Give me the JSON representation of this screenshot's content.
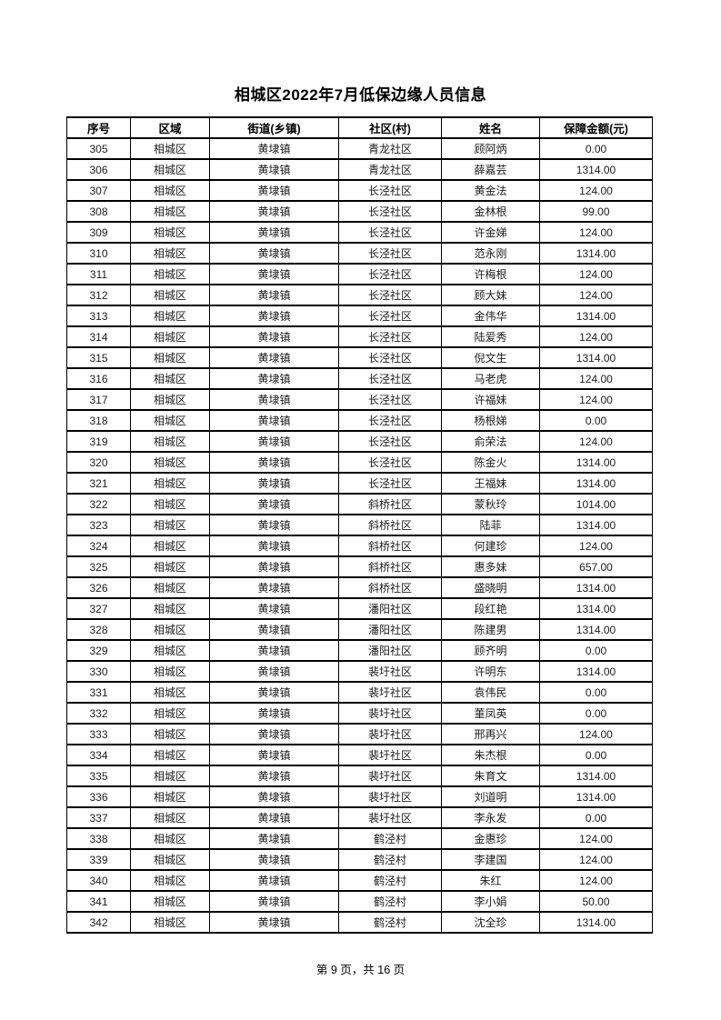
{
  "page": {
    "title": "相城区2022年7月低保边缘人员信息",
    "footer": "第 9 页，共 16 页"
  },
  "table": {
    "headers": [
      "序号",
      "区域",
      "街道(乡镇)",
      "社区(村)",
      "姓名",
      "保障金额(元)"
    ],
    "column_keys": [
      "seq",
      "region",
      "town",
      "community",
      "name",
      "amount"
    ],
    "rows": [
      {
        "seq": "305",
        "region": "相城区",
        "town": "黄埭镇",
        "community": "青龙社区",
        "name": "顾阿炳",
        "amount": "0.00"
      },
      {
        "seq": "306",
        "region": "相城区",
        "town": "黄埭镇",
        "community": "青龙社区",
        "name": "薛嘉芸",
        "amount": "1314.00"
      },
      {
        "seq": "307",
        "region": "相城区",
        "town": "黄埭镇",
        "community": "长泾社区",
        "name": "黄金法",
        "amount": "124.00"
      },
      {
        "seq": "308",
        "region": "相城区",
        "town": "黄埭镇",
        "community": "长泾社区",
        "name": "金林根",
        "amount": "99.00"
      },
      {
        "seq": "309",
        "region": "相城区",
        "town": "黄埭镇",
        "community": "长泾社区",
        "name": "许金娣",
        "amount": "124.00"
      },
      {
        "seq": "310",
        "region": "相城区",
        "town": "黄埭镇",
        "community": "长泾社区",
        "name": "范永刚",
        "amount": "1314.00"
      },
      {
        "seq": "311",
        "region": "相城区",
        "town": "黄埭镇",
        "community": "长泾社区",
        "name": "许梅根",
        "amount": "124.00"
      },
      {
        "seq": "312",
        "region": "相城区",
        "town": "黄埭镇",
        "community": "长泾社区",
        "name": "顾大妹",
        "amount": "124.00"
      },
      {
        "seq": "313",
        "region": "相城区",
        "town": "黄埭镇",
        "community": "长泾社区",
        "name": "金伟华",
        "amount": "1314.00"
      },
      {
        "seq": "314",
        "region": "相城区",
        "town": "黄埭镇",
        "community": "长泾社区",
        "name": "陆爱秀",
        "amount": "124.00"
      },
      {
        "seq": "315",
        "region": "相城区",
        "town": "黄埭镇",
        "community": "长泾社区",
        "name": "倪文生",
        "amount": "1314.00"
      },
      {
        "seq": "316",
        "region": "相城区",
        "town": "黄埭镇",
        "community": "长泾社区",
        "name": "马老虎",
        "amount": "124.00"
      },
      {
        "seq": "317",
        "region": "相城区",
        "town": "黄埭镇",
        "community": "长泾社区",
        "name": "许福妹",
        "amount": "124.00"
      },
      {
        "seq": "318",
        "region": "相城区",
        "town": "黄埭镇",
        "community": "长泾社区",
        "name": "杨根娣",
        "amount": "0.00"
      },
      {
        "seq": "319",
        "region": "相城区",
        "town": "黄埭镇",
        "community": "长泾社区",
        "name": "俞荣法",
        "amount": "124.00"
      },
      {
        "seq": "320",
        "region": "相城区",
        "town": "黄埭镇",
        "community": "长泾社区",
        "name": "陈金火",
        "amount": "1314.00"
      },
      {
        "seq": "321",
        "region": "相城区",
        "town": "黄埭镇",
        "community": "长泾社区",
        "name": "王福妹",
        "amount": "1314.00"
      },
      {
        "seq": "322",
        "region": "相城区",
        "town": "黄埭镇",
        "community": "斜桥社区",
        "name": "蒙秋玲",
        "amount": "1014.00"
      },
      {
        "seq": "323",
        "region": "相城区",
        "town": "黄埭镇",
        "community": "斜桥社区",
        "name": "陆菲",
        "amount": "1314.00"
      },
      {
        "seq": "324",
        "region": "相城区",
        "town": "黄埭镇",
        "community": "斜桥社区",
        "name": "何建珍",
        "amount": "124.00"
      },
      {
        "seq": "325",
        "region": "相城区",
        "town": "黄埭镇",
        "community": "斜桥社区",
        "name": "惠多妹",
        "amount": "657.00"
      },
      {
        "seq": "326",
        "region": "相城区",
        "town": "黄埭镇",
        "community": "斜桥社区",
        "name": "盛晓明",
        "amount": "1314.00"
      },
      {
        "seq": "327",
        "region": "相城区",
        "town": "黄埭镇",
        "community": "潘阳社区",
        "name": "段红艳",
        "amount": "1314.00"
      },
      {
        "seq": "328",
        "region": "相城区",
        "town": "黄埭镇",
        "community": "潘阳社区",
        "name": "陈建男",
        "amount": "1314.00"
      },
      {
        "seq": "329",
        "region": "相城区",
        "town": "黄埭镇",
        "community": "潘阳社区",
        "name": "顾齐明",
        "amount": "0.00"
      },
      {
        "seq": "330",
        "region": "相城区",
        "town": "黄埭镇",
        "community": "裴圩社区",
        "name": "许明东",
        "amount": "1314.00"
      },
      {
        "seq": "331",
        "region": "相城区",
        "town": "黄埭镇",
        "community": "裴圩社区",
        "name": "袁伟民",
        "amount": "0.00"
      },
      {
        "seq": "332",
        "region": "相城区",
        "town": "黄埭镇",
        "community": "裴圩社区",
        "name": "董凤英",
        "amount": "0.00"
      },
      {
        "seq": "333",
        "region": "相城区",
        "town": "黄埭镇",
        "community": "裴圩社区",
        "name": "邢再兴",
        "amount": "124.00"
      },
      {
        "seq": "334",
        "region": "相城区",
        "town": "黄埭镇",
        "community": "裴圩社区",
        "name": "朱杰根",
        "amount": "0.00"
      },
      {
        "seq": "335",
        "region": "相城区",
        "town": "黄埭镇",
        "community": "裴圩社区",
        "name": "朱育文",
        "amount": "1314.00"
      },
      {
        "seq": "336",
        "region": "相城区",
        "town": "黄埭镇",
        "community": "裴圩社区",
        "name": "刘道明",
        "amount": "1314.00"
      },
      {
        "seq": "337",
        "region": "相城区",
        "town": "黄埭镇",
        "community": "裴圩社区",
        "name": "李永发",
        "amount": "0.00"
      },
      {
        "seq": "338",
        "region": "相城区",
        "town": "黄埭镇",
        "community": "鹤泾村",
        "name": "金惠珍",
        "amount": "124.00"
      },
      {
        "seq": "339",
        "region": "相城区",
        "town": "黄埭镇",
        "community": "鹤泾村",
        "name": "李建国",
        "amount": "124.00"
      },
      {
        "seq": "340",
        "region": "相城区",
        "town": "黄埭镇",
        "community": "鹤泾村",
        "name": "朱红",
        "amount": "124.00"
      },
      {
        "seq": "341",
        "region": "相城区",
        "town": "黄埭镇",
        "community": "鹤泾村",
        "name": "李小娟",
        "amount": "50.00"
      },
      {
        "seq": "342",
        "region": "相城区",
        "town": "黄埭镇",
        "community": "鹤泾村",
        "name": "沈全珍",
        "amount": "1314.00"
      }
    ]
  }
}
